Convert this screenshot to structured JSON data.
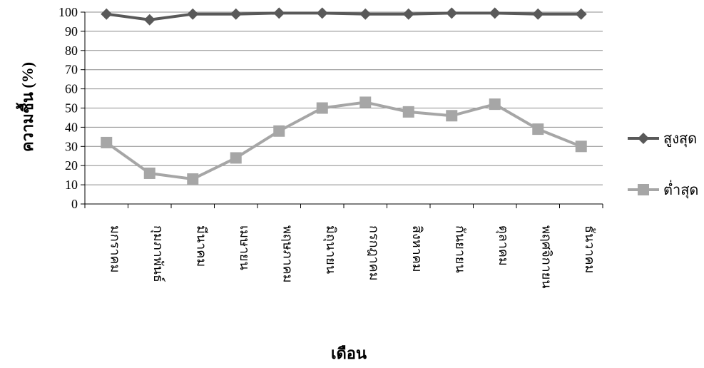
{
  "chart_data": {
    "type": "line",
    "xlabel": "เดือน",
    "ylabel": "ความชื้น (%)",
    "ylim": [
      0,
      100
    ],
    "yticks": [
      0,
      10,
      20,
      30,
      40,
      50,
      60,
      70,
      80,
      90,
      100
    ],
    "grid": true,
    "legend_placement": "right",
    "categories": [
      "มกราคม",
      "กุมภาพันธ์",
      "มีนาคม",
      "เมษายน",
      "พฤษภาคม",
      "มิถุนายน",
      "กรกฎาคม",
      "สิงหาคม",
      "กันยายน",
      "ตุลาคม",
      "พฤศจิกายน",
      "ธันวาคม"
    ],
    "series": [
      {
        "name": "สูงสุด",
        "marker": "diamond",
        "color": "#595959",
        "values": [
          99,
          96,
          99,
          99,
          99.5,
          99.5,
          99,
          99,
          99.5,
          99.5,
          99,
          99
        ]
      },
      {
        "name": "ต่ำสุด",
        "marker": "square",
        "color": "#a6a6a6",
        "values": [
          32,
          16,
          13,
          24,
          38,
          50,
          53,
          48,
          46,
          52,
          39,
          30
        ]
      }
    ]
  }
}
